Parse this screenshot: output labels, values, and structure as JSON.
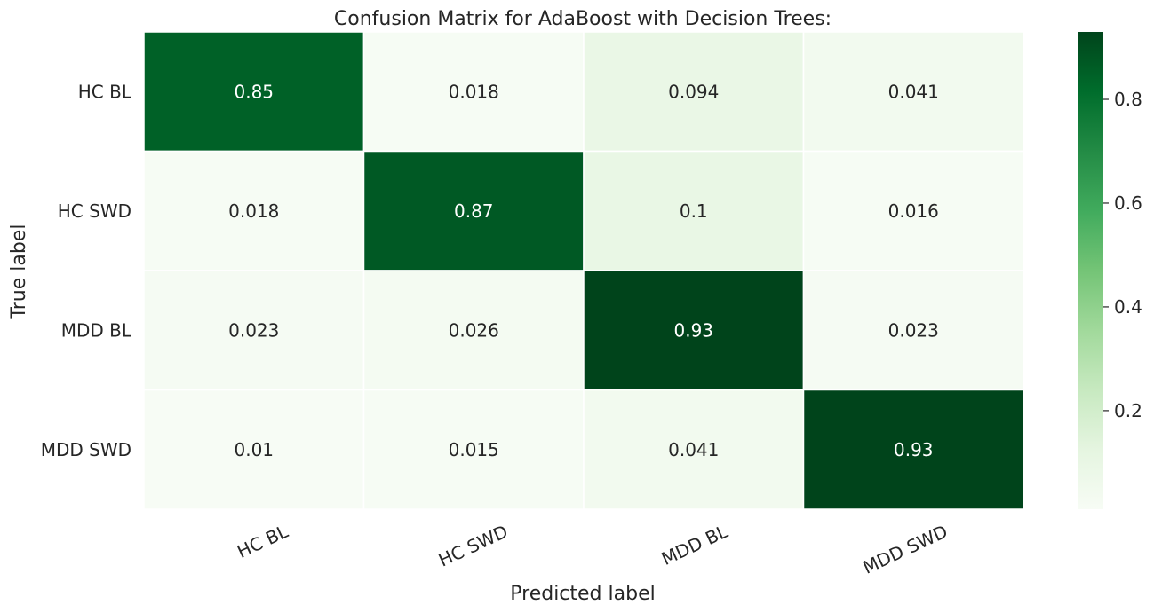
{
  "chart_data": {
    "type": "heatmap",
    "title": "Confusion Matrix for AdaBoost with Decision Trees:",
    "xlabel": "Predicted label",
    "ylabel": "True label",
    "x_categories": [
      "HC BL",
      "HC SWD",
      "MDD BL",
      "MDD SWD"
    ],
    "y_categories": [
      "HC BL",
      "HC SWD",
      "MDD BL",
      "MDD SWD"
    ],
    "values": [
      [
        0.85,
        0.018,
        0.094,
        0.041
      ],
      [
        0.018,
        0.87,
        0.1,
        0.016
      ],
      [
        0.023,
        0.026,
        0.93,
        0.023
      ],
      [
        0.01,
        0.015,
        0.041,
        0.93
      ]
    ],
    "value_labels": [
      [
        "0.85",
        "0.018",
        "0.094",
        "0.041"
      ],
      [
        "0.018",
        "0.87",
        "0.1",
        "0.016"
      ],
      [
        "0.023",
        "0.026",
        "0.93",
        "0.023"
      ],
      [
        "0.01",
        "0.015",
        "0.041",
        "0.93"
      ]
    ],
    "colormap": "Greens",
    "colorbar": {
      "range": [
        0.01,
        0.93
      ],
      "ticks": [
        0.2,
        0.4,
        0.6,
        0.8
      ],
      "tick_labels": [
        "0.2",
        "0.4",
        "0.6",
        "0.8"
      ]
    },
    "grid": false,
    "legend": "colorbar-right"
  }
}
